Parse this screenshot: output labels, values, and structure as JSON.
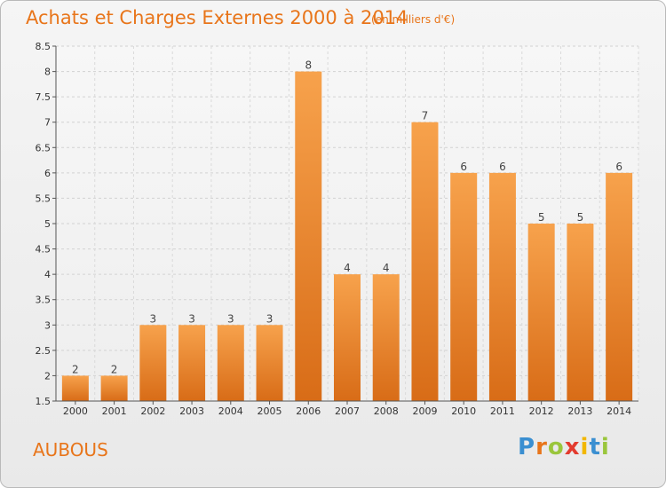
{
  "header": {
    "title": "Achats et Charges Externes 2000 à 2014",
    "subtitle": "(en milliers d'€)"
  },
  "footer": {
    "commune": "AUBOUS",
    "logo_letters": [
      {
        "char": "P",
        "color": "#3a8fd1"
      },
      {
        "char": "r",
        "color": "#e8751a"
      },
      {
        "char": "o",
        "color": "#9ac63c"
      },
      {
        "char": "x",
        "color": "#e33b2e"
      },
      {
        "char": "i",
        "color": "#f2b700"
      },
      {
        "char": "t",
        "color": "#3a8fd1"
      },
      {
        "char": "i",
        "color": "#9ac63c"
      }
    ]
  },
  "chart_data": {
    "type": "bar",
    "title": "Achats et Charges Externes 2000 à 2014",
    "subtitle": "(en milliers d'€)",
    "categories": [
      "2000",
      "2001",
      "2002",
      "2003",
      "2004",
      "2005",
      "2006",
      "2007",
      "2008",
      "2009",
      "2010",
      "2011",
      "2012",
      "2013",
      "2014"
    ],
    "values": [
      2,
      2,
      3,
      3,
      3,
      3,
      8,
      4,
      4,
      7,
      6,
      6,
      5,
      5,
      6
    ],
    "value_labels": [
      "2",
      "2",
      "3",
      "3",
      "3",
      "3",
      "8",
      "4",
      "4",
      "7",
      "6",
      "6",
      "5",
      "5",
      "6"
    ],
    "ylim": [
      1.5,
      8.5
    ],
    "yticks": [
      "1.5",
      "2",
      "2.5",
      "3",
      "3.5",
      "4",
      "4.5",
      "5",
      "5.5",
      "6",
      "6.5",
      "7",
      "7.5",
      "8",
      "8.5"
    ],
    "grid": true,
    "bar_color_top": "#f7a24c",
    "bar_color_bottom": "#d86c17"
  }
}
